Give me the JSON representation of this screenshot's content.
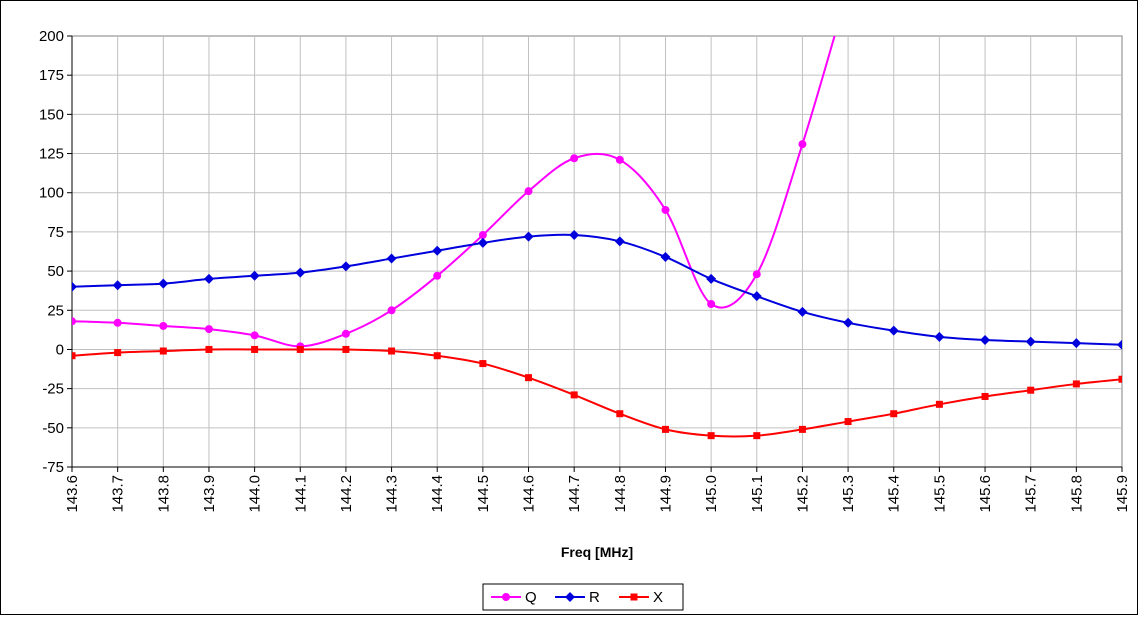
{
  "chart_data": {
    "type": "line",
    "title": "",
    "xlabel": "Freq [MHz]",
    "ylabel": "",
    "categories": [
      "143.6",
      "143.7",
      "143.8",
      "143.9",
      "144.0",
      "144.1",
      "144.2",
      "144.3",
      "144.4",
      "144.5",
      "144.6",
      "144.7",
      "144.8",
      "144.9",
      "145.0",
      "145.1",
      "145.2",
      "145.3",
      "145.4",
      "145.5",
      "145.6",
      "145.7",
      "145.8",
      "145.9"
    ],
    "ylim": [
      -75,
      200
    ],
    "yticks": [
      -75,
      -50,
      -25,
      0,
      25,
      50,
      75,
      100,
      125,
      150,
      175,
      200
    ],
    "grid": true,
    "smooth": true,
    "legend_position": "bottom",
    "series": [
      {
        "name": "Q",
        "color": "#ff00ff",
        "marker": "circle",
        "values": [
          18,
          17,
          15,
          13,
          9,
          2,
          10,
          25,
          47,
          73,
          101,
          122,
          121,
          89,
          29,
          48,
          131,
          230,
          null,
          null,
          null,
          null,
          null,
          null
        ]
      },
      {
        "name": "R",
        "color": "#0000dd",
        "marker": "diamond",
        "values": [
          40,
          41,
          42,
          45,
          47,
          49,
          53,
          58,
          63,
          68,
          72,
          73,
          69,
          59,
          45,
          34,
          24,
          17,
          12,
          8,
          6,
          5,
          4,
          3
        ]
      },
      {
        "name": "X",
        "color": "#ff0000",
        "marker": "square",
        "values": [
          -4,
          -2,
          -1,
          0,
          0,
          0,
          0,
          -1,
          -4,
          -9,
          -18,
          -29,
          -41,
          -51,
          -55,
          -55,
          -51,
          -46,
          -41,
          -35,
          -30,
          -26,
          -22,
          -19
        ]
      }
    ]
  }
}
